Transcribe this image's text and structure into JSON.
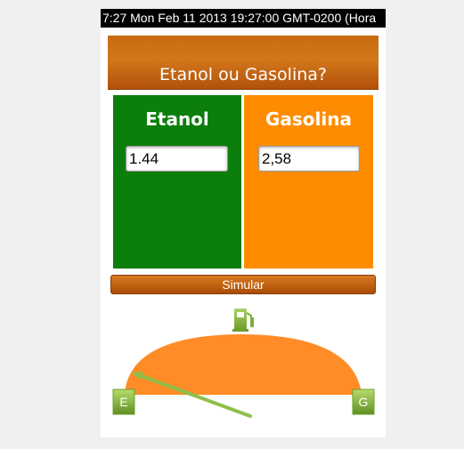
{
  "status_bar": {
    "text": "7:27 Mon Feb 11 2013 19:27:00 GMT-0200 (Hora"
  },
  "header": {
    "title": "Etanol ou Gasolina?",
    "color": "#c96a12"
  },
  "etanol": {
    "label": "Etanol",
    "value": "1.44",
    "color": "#0b7e0b"
  },
  "gasolina": {
    "label": "Gasolina",
    "value": "2,58",
    "color": "#ff8c00"
  },
  "simulate": {
    "label": "Simular"
  },
  "gauge": {
    "fuel_pump_icon": "fuel-pump-icon",
    "left_label": "E",
    "right_label": "G",
    "arc_color": "#ff8c26",
    "needle_color": "#8fbf4a",
    "marker_color": "#84b53a"
  }
}
